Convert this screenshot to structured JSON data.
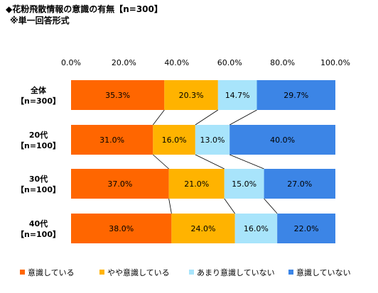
{
  "title": "◆花粉飛散情報の意識の有無【n=300】",
  "subtitle": "※単一回答形式",
  "chart_data": {
    "type": "bar",
    "orientation": "horizontal",
    "stacked": "percent",
    "x_ticks": [
      "0.0%",
      "20.0%",
      "40.0%",
      "60.0%",
      "80.0%",
      "100.0%"
    ],
    "xlim": [
      0,
      100
    ],
    "categories": [
      {
        "line1": "全体",
        "line2": "【n=300】"
      },
      {
        "line1": "20代",
        "line2": "【n=100】"
      },
      {
        "line1": "30代",
        "line2": "【n=100】"
      },
      {
        "line1": "40代",
        "line2": "【n=100】"
      }
    ],
    "series": [
      {
        "name": "意識している",
        "color": "#FF6600",
        "values": [
          35.3,
          31.0,
          37.0,
          38.0
        ],
        "labels": [
          "35.3%",
          "31.0%",
          "37.0%",
          "38.0%"
        ]
      },
      {
        "name": "やや意識している",
        "color": "#FFB300",
        "values": [
          20.3,
          16.0,
          21.0,
          24.0
        ],
        "labels": [
          "20.3%",
          "16.0%",
          "21.0%",
          "24.0%"
        ]
      },
      {
        "name": "あまり意識していない",
        "color": "#A8E4FB",
        "values": [
          14.7,
          13.0,
          15.0,
          16.0
        ],
        "labels": [
          "14.7%",
          "13.0%",
          "15.0%",
          "16.0%"
        ]
      },
      {
        "name": "意識していない",
        "color": "#3C85E6",
        "values": [
          29.7,
          40.0,
          27.0,
          22.0
        ],
        "labels": [
          "29.7%",
          "40.0%",
          "27.0%",
          "22.0%"
        ]
      }
    ],
    "grid": false,
    "series_connector_lines": true,
    "legend_position": "bottom"
  }
}
